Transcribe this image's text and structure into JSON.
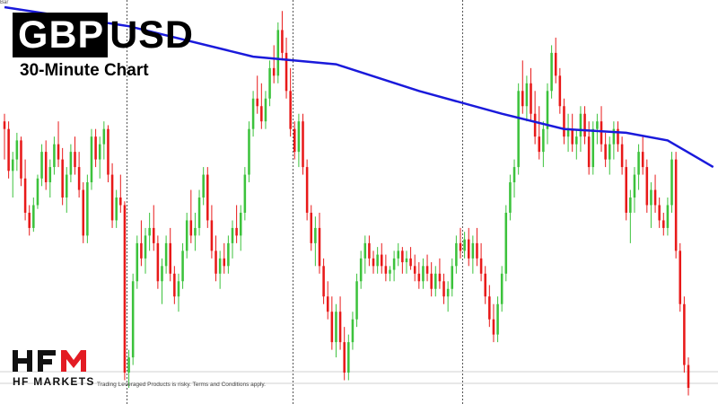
{
  "header": {
    "symbol_highlight": "GBP",
    "symbol_rest": "USD",
    "subtitle": "30-Minute Chart",
    "corner_label": "Bar"
  },
  "branding": {
    "logo_name": "hfm-logo",
    "company": "HF MARKETS",
    "disclaimer": "Trading Leveraged Products is risky. Terms and Conditions apply."
  },
  "colors": {
    "bull": "#3cc23c",
    "bear": "#e81919",
    "moving_average": "#1a1adb",
    "logo_red": "#e31b23",
    "grid": "#555555"
  },
  "chart_data": {
    "type": "candlestick",
    "title": "GBPUSD",
    "subtitle": "30-Minute Chart",
    "xlabel": "",
    "ylabel": "",
    "ylim": [
      0,
      100
    ],
    "price_scale_note": "no price axis visible; values are relative levels (0 = bottom, 100 = top of plot)",
    "grid": "vertical session dividers only",
    "session_breaks_after_candle": [
      29,
      69,
      110
    ],
    "candles": [
      [
        70,
        72,
        60,
        68
      ],
      [
        68,
        70,
        55,
        57
      ],
      [
        57,
        62,
        50,
        60
      ],
      [
        60,
        67,
        57,
        65
      ],
      [
        65,
        66,
        53,
        55
      ],
      [
        55,
        60,
        44,
        46
      ],
      [
        46,
        48,
        40,
        42
      ],
      [
        42,
        50,
        41,
        48
      ],
      [
        48,
        56,
        47,
        55
      ],
      [
        55,
        64,
        53,
        62
      ],
      [
        62,
        65,
        52,
        54
      ],
      [
        54,
        60,
        50,
        58
      ],
      [
        58,
        66,
        56,
        64
      ],
      [
        64,
        70,
        58,
        60
      ],
      [
        60,
        63,
        48,
        50
      ],
      [
        50,
        58,
        46,
        56
      ],
      [
        56,
        64,
        54,
        62
      ],
      [
        62,
        66,
        56,
        58
      ],
      [
        58,
        62,
        50,
        52
      ],
      [
        52,
        54,
        38,
        40
      ],
      [
        40,
        56,
        38,
        54
      ],
      [
        54,
        68,
        52,
        66
      ],
      [
        66,
        68,
        58,
        60
      ],
      [
        60,
        66,
        55,
        64
      ],
      [
        64,
        70,
        60,
        68
      ],
      [
        68,
        69,
        54,
        56
      ],
      [
        56,
        59,
        42,
        44
      ],
      [
        44,
        52,
        42,
        50
      ],
      [
        50,
        56,
        46,
        48
      ],
      [
        48,
        49,
        2,
        4
      ],
      [
        4,
        10,
        0,
        8
      ],
      [
        8,
        30,
        6,
        28
      ],
      [
        28,
        40,
        26,
        38
      ],
      [
        38,
        44,
        32,
        34
      ],
      [
        34,
        42,
        30,
        40
      ],
      [
        40,
        46,
        36,
        42
      ],
      [
        42,
        48,
        36,
        38
      ],
      [
        38,
        40,
        26,
        28
      ],
      [
        28,
        34,
        22,
        32
      ],
      [
        32,
        40,
        30,
        38
      ],
      [
        38,
        42,
        28,
        30
      ],
      [
        30,
        32,
        22,
        24
      ],
      [
        24,
        30,
        20,
        28
      ],
      [
        28,
        38,
        26,
        36
      ],
      [
        36,
        46,
        34,
        44
      ],
      [
        44,
        52,
        38,
        40
      ],
      [
        40,
        46,
        36,
        42
      ],
      [
        42,
        52,
        40,
        50
      ],
      [
        50,
        58,
        48,
        56
      ],
      [
        56,
        58,
        42,
        44
      ],
      [
        44,
        48,
        34,
        36
      ],
      [
        36,
        40,
        28,
        30
      ],
      [
        30,
        36,
        26,
        34
      ],
      [
        34,
        38,
        30,
        32
      ],
      [
        32,
        40,
        30,
        38
      ],
      [
        38,
        44,
        34,
        42
      ],
      [
        42,
        48,
        38,
        40
      ],
      [
        40,
        48,
        36,
        46
      ],
      [
        46,
        58,
        44,
        56
      ],
      [
        56,
        70,
        54,
        68
      ],
      [
        68,
        78,
        66,
        76
      ],
      [
        76,
        82,
        72,
        74
      ],
      [
        74,
        80,
        68,
        70
      ],
      [
        70,
        78,
        68,
        76
      ],
      [
        76,
        86,
        74,
        84
      ],
      [
        84,
        90,
        80,
        82
      ],
      [
        82,
        96,
        80,
        94
      ],
      [
        94,
        99,
        86,
        88
      ],
      [
        88,
        92,
        76,
        78
      ],
      [
        78,
        84,
        66,
        68
      ],
      [
        68,
        70,
        60,
        62
      ],
      [
        62,
        72,
        58,
        70
      ],
      [
        70,
        72,
        56,
        58
      ],
      [
        58,
        60,
        44,
        46
      ],
      [
        46,
        48,
        36,
        38
      ],
      [
        38,
        45,
        32,
        42
      ],
      [
        42,
        46,
        30,
        32
      ],
      [
        32,
        34,
        22,
        24
      ],
      [
        24,
        28,
        18,
        20
      ],
      [
        20,
        24,
        10,
        12
      ],
      [
        12,
        22,
        8,
        20
      ],
      [
        20,
        24,
        10,
        12
      ],
      [
        12,
        16,
        2,
        4
      ],
      [
        4,
        14,
        2,
        12
      ],
      [
        12,
        20,
        10,
        18
      ],
      [
        18,
        30,
        16,
        28
      ],
      [
        28,
        36,
        26,
        34
      ],
      [
        34,
        40,
        30,
        38
      ],
      [
        38,
        40,
        32,
        34
      ],
      [
        34,
        36,
        30,
        32
      ],
      [
        32,
        37,
        30,
        35
      ],
      [
        35,
        38,
        30,
        32
      ],
      [
        32,
        35,
        28,
        30
      ],
      [
        30,
        32,
        28,
        31
      ],
      [
        31,
        36,
        28,
        34
      ],
      [
        34,
        38,
        32,
        36
      ],
      [
        36,
        37,
        30,
        33
      ],
      [
        33,
        36,
        30,
        34
      ],
      [
        34,
        37,
        31,
        32
      ],
      [
        32,
        35,
        28,
        30
      ],
      [
        30,
        33,
        26,
        28
      ],
      [
        28,
        34,
        26,
        32
      ],
      [
        32,
        35,
        28,
        30
      ],
      [
        30,
        33,
        24,
        26
      ],
      [
        26,
        32,
        24,
        30
      ],
      [
        30,
        34,
        26,
        28
      ],
      [
        28,
        30,
        22,
        24
      ],
      [
        24,
        28,
        20,
        26
      ],
      [
        26,
        34,
        24,
        32
      ],
      [
        32,
        40,
        30,
        38
      ],
      [
        38,
        42,
        34,
        36
      ],
      [
        36,
        41,
        34,
        39
      ],
      [
        39,
        42,
        32,
        34
      ],
      [
        34,
        40,
        30,
        38
      ],
      [
        38,
        42,
        32,
        34
      ],
      [
        34,
        38,
        28,
        30
      ],
      [
        30,
        32,
        22,
        24
      ],
      [
        24,
        27,
        16,
        18
      ],
      [
        18,
        22,
        12,
        14
      ],
      [
        14,
        24,
        12,
        22
      ],
      [
        22,
        32,
        20,
        30
      ],
      [
        30,
        48,
        28,
        46
      ],
      [
        46,
        56,
        44,
        54
      ],
      [
        54,
        60,
        50,
        58
      ],
      [
        58,
        80,
        56,
        78
      ],
      [
        78,
        86,
        72,
        74
      ],
      [
        74,
        82,
        70,
        80
      ],
      [
        80,
        84,
        70,
        72
      ],
      [
        72,
        78,
        64,
        66
      ],
      [
        66,
        74,
        60,
        62
      ],
      [
        62,
        70,
        58,
        68
      ],
      [
        68,
        80,
        64,
        78
      ],
      [
        78,
        90,
        76,
        88
      ],
      [
        88,
        92,
        80,
        82
      ],
      [
        82,
        84,
        72,
        74
      ],
      [
        74,
        76,
        64,
        66
      ],
      [
        66,
        72,
        62,
        68
      ],
      [
        68,
        72,
        62,
        64
      ],
      [
        64,
        68,
        60,
        66
      ],
      [
        66,
        74,
        62,
        72
      ],
      [
        72,
        74,
        64,
        66
      ],
      [
        66,
        70,
        56,
        58
      ],
      [
        58,
        70,
        56,
        68
      ],
      [
        68,
        72,
        64,
        70
      ],
      [
        70,
        74,
        62,
        64
      ],
      [
        64,
        67,
        58,
        60
      ],
      [
        60,
        66,
        56,
        64
      ],
      [
        64,
        70,
        60,
        68
      ],
      [
        68,
        70,
        62,
        64
      ],
      [
        64,
        66,
        56,
        58
      ],
      [
        58,
        60,
        44,
        46
      ],
      [
        46,
        52,
        38,
        50
      ],
      [
        50,
        58,
        46,
        56
      ],
      [
        56,
        64,
        52,
        62
      ],
      [
        62,
        66,
        56,
        58
      ],
      [
        58,
        60,
        46,
        48
      ],
      [
        48,
        54,
        42,
        52
      ],
      [
        52,
        56,
        46,
        48
      ],
      [
        48,
        50,
        42,
        44
      ],
      [
        44,
        46,
        40,
        42
      ],
      [
        42,
        50,
        40,
        48
      ],
      [
        48,
        62,
        46,
        60
      ],
      [
        60,
        62,
        34,
        36
      ],
      [
        36,
        38,
        20,
        22
      ],
      [
        22,
        24,
        4,
        6
      ],
      [
        6,
        8,
        -2,
        0
      ]
    ],
    "moving_average": [
      [
        0,
        100
      ],
      [
        30,
        95
      ],
      [
        60,
        87
      ],
      [
        80,
        85
      ],
      [
        100,
        78
      ],
      [
        120,
        72
      ],
      [
        135,
        68
      ],
      [
        150,
        67
      ],
      [
        160,
        65
      ],
      [
        171,
        58
      ]
    ]
  }
}
